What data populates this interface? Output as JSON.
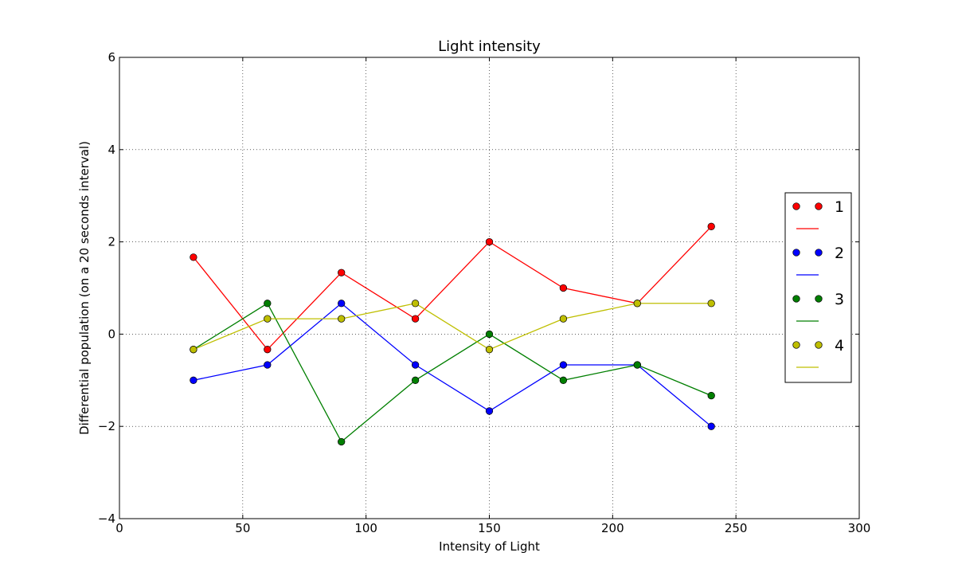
{
  "chart_data": {
    "type": "line",
    "title": "Light intensity",
    "xlabel": "Intensity of Light",
    "ylabel": "Differential population (on a 20 seconds interval)",
    "xlim": [
      0,
      300
    ],
    "ylim": [
      -4,
      6
    ],
    "xticks": [
      0,
      50,
      100,
      150,
      200,
      250,
      300
    ],
    "xtick_labels": [
      "0",
      "50",
      "100",
      "150",
      "200",
      "250",
      "300"
    ],
    "yticks": [
      -4,
      -2,
      0,
      2,
      4,
      6
    ],
    "ytick_labels": [
      "−4",
      "−2",
      "0",
      "2",
      "4",
      "6"
    ],
    "grid": true,
    "legend_position": "center-right",
    "x": [
      30,
      60,
      90,
      120,
      150,
      180,
      210,
      240
    ],
    "series": [
      {
        "name": "1",
        "color": "#ff0000",
        "values": [
          1.667,
          -0.333,
          1.333,
          0.333,
          2.0,
          1.0,
          0.667,
          2.333
        ]
      },
      {
        "name": "2",
        "color": "#0000ff",
        "values": [
          -1.0,
          -0.667,
          0.667,
          -0.667,
          -1.667,
          -0.667,
          -0.667,
          -2.0
        ]
      },
      {
        "name": "3",
        "color": "#007f00",
        "values": [
          -0.333,
          0.667,
          -2.333,
          -1.0,
          0.0,
          -1.0,
          -0.667,
          -1.333
        ]
      },
      {
        "name": "4",
        "color": "#bfbf00",
        "values": [
          -0.333,
          0.333,
          0.333,
          0.667,
          -0.333,
          0.333,
          0.667,
          0.667
        ]
      }
    ]
  }
}
